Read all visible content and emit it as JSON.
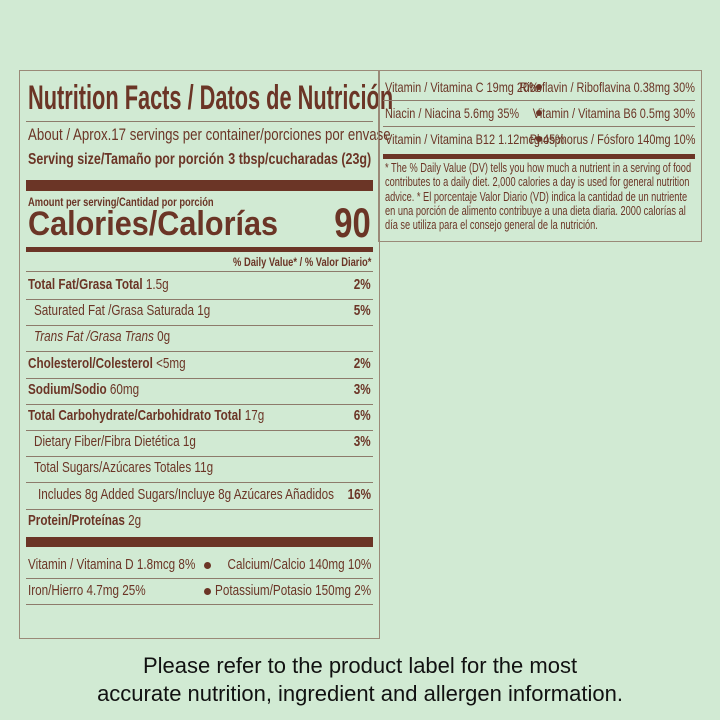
{
  "label": {
    "title": "Nutrition Facts / Datos de Nutrición",
    "servings": "About / Aprox.17 servings per container/porciones por envase",
    "serving_size_label": "Serving size/Tamaño por porción",
    "serving_size_value": "3 tbsp/cucharadas (23g)",
    "amount_per_serving": "Amount per serving/Cantidad por porción",
    "calories_label": "Calories/Calorías",
    "calories_value": "90",
    "dv_header": "% Daily Value* / % Valor Diario*",
    "nutrients": [
      {
        "name": "Total Fat/Grasa Total",
        "amount": "1.5g",
        "dv": "2%"
      },
      {
        "name": "Saturated Fat /Grasa Saturada",
        "amount": "1g",
        "dv": "5%"
      },
      {
        "name": "Trans Fat /Grasa Trans",
        "amount": "0g",
        "dv": ""
      },
      {
        "name": "Cholesterol/Colesterol",
        "amount": "<5mg",
        "dv": "2%"
      },
      {
        "name": "Sodium/Sodio",
        "amount": "60mg",
        "dv": "3%"
      },
      {
        "name": "Total Carbohydrate/Carbohidrato Total",
        "amount": "17g",
        "dv": "6%"
      },
      {
        "name": "Dietary Fiber/Fibra Dietética",
        "amount": "1g",
        "dv": "3%"
      },
      {
        "name": "Total Sugars/Azúcares Totales",
        "amount": "11g",
        "dv": ""
      },
      {
        "name": "Includes 8g Added Sugars/Incluye 8g Azúcares Añadidos",
        "amount": "",
        "dv": "16%"
      },
      {
        "name": "Protein/Proteínas",
        "amount": "2g",
        "dv": ""
      }
    ],
    "vitamins_left": [
      [
        "Vitamin / Vitamina D 1.8mcg 8%",
        "Calcium/Calcio 140mg 10%"
      ],
      [
        "Iron/Hierro 4.7mg 25%",
        "Potassium/Potasio 150mg 2%"
      ]
    ],
    "vitamins_right": [
      [
        "Vitamin / Vitamina C 19mg 20%",
        "Riboflavin / Riboflavina 0.38mg 30%"
      ],
      [
        "Niacin / Niacina 5.6mg 35%",
        "Vitamin / Vitamina B6 0.5mg 30%"
      ],
      [
        "Vitamin / Vitamina B12 1.12mcg 45%",
        "Phosphorus / Fósforo 140mg 10%"
      ]
    ],
    "footnote": "* The % Daily Value (DV) tells you how much a nutrient in a serving of food contributes to a daily diet. 2,000 calories a day is used for general nutrition advice. * El porcentaje Valor Diario (VD) indica la cantidad de un nutriente en una porción de alimento contribuye a una dieta diaria. 2000 calorías al día se utiliza para el consejo general de la nutrición."
  },
  "footer": {
    "line1": "Please refer to the product label for the most",
    "line2": "accurate nutrition, ingredient and allergen information."
  },
  "colors": {
    "background": "#d1ead3",
    "label_brown": "#6b3526"
  }
}
